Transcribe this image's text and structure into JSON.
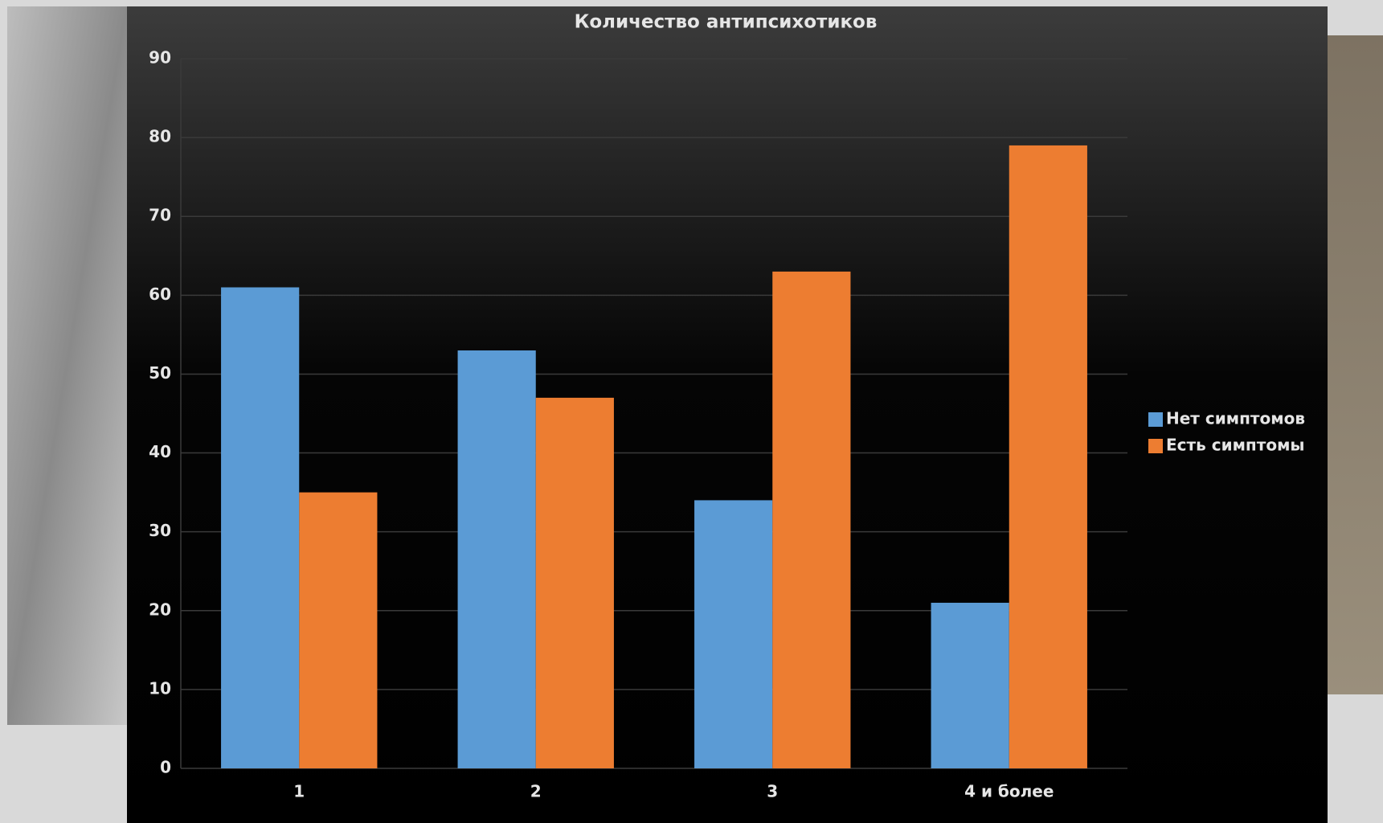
{
  "chart_data": {
    "type": "bar",
    "title": "Количество антипсихотиков",
    "categories": [
      "1",
      "2",
      "3",
      "4 и более"
    ],
    "series": [
      {
        "name": "Нет симптомов",
        "color": "#5b9bd5",
        "values": [
          61,
          53,
          34,
          21
        ]
      },
      {
        "name": "Есть симптомы",
        "color": "#ed7d31",
        "values": [
          35,
          47,
          63,
          79
        ]
      }
    ],
    "ylim": [
      0,
      90
    ],
    "yticks": [
      0,
      10,
      20,
      30,
      40,
      50,
      60,
      70,
      80,
      90
    ],
    "grid": true,
    "legend": "right"
  }
}
